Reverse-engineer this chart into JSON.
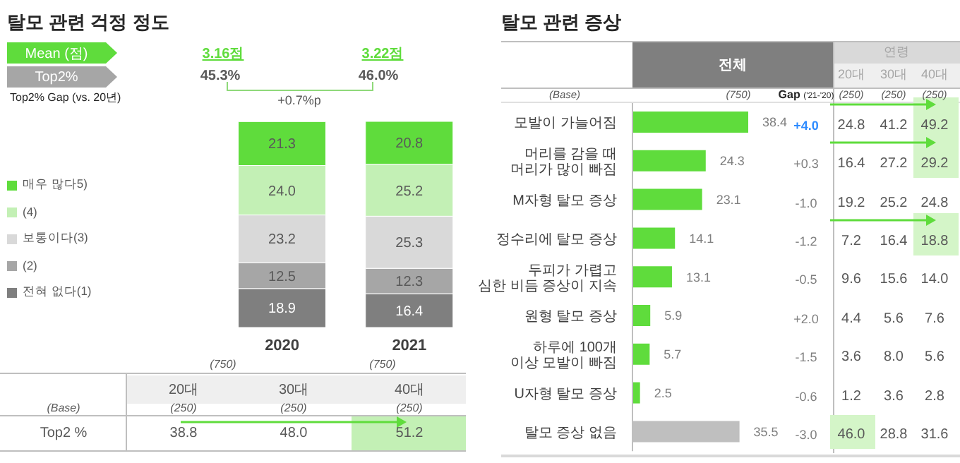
{
  "chart_data": [
    {
      "type": "bar",
      "title": "탈모 관련 걱정 정도",
      "stacked": true,
      "categories": [
        "2020",
        "2021"
      ],
      "legend": "left",
      "series": [
        {
          "name": "전혀 없다(1)",
          "color": "#7f7f7f",
          "values": [
            18.9,
            16.4
          ],
          "value_labels": [
            "18.9",
            "16.4"
          ]
        },
        {
          "name": "(2)",
          "color": "#a6a6a6",
          "values": [
            12.5,
            12.3
          ],
          "value_labels": [
            "12.5",
            "12.3"
          ]
        },
        {
          "name": "보통이다(3)",
          "color": "#d9d9d9",
          "values": [
            23.2,
            25.3
          ],
          "value_labels": [
            "23.2",
            "25.3"
          ]
        },
        {
          "name": "(4)",
          "color": "#c3f0b5",
          "values": [
            24.0,
            25.2
          ],
          "value_labels": [
            "24.0",
            "25.2"
          ]
        },
        {
          "name": "매우 많다5)",
          "color": "#5fdc3c",
          "values": [
            21.3,
            20.8
          ],
          "value_labels": [
            "21.3",
            "20.8"
          ]
        }
      ],
      "annotations": [
        "Mean (점)",
        "Top2%",
        "Top2% Gap (vs. 20년)",
        "3.16점",
        "3.22점",
        "45.3%",
        "46.0%",
        "+0.7%p",
        "(750)",
        "(750)"
      ]
    },
    {
      "type": "other",
      "categories": [
        "20대",
        "30대",
        "40대"
      ],
      "values": [
        38.8,
        48.0,
        51.2
      ],
      "value_labels": [
        "38.8",
        "48.0",
        "51.2"
      ],
      "ylabel": "Top2 %",
      "annotations": [
        "(Base)",
        "(250)",
        "(250)",
        "(250)"
      ]
    },
    {
      "type": "bar",
      "title": "탈모 관련 증상",
      "orientation": "horizontal",
      "data_labels": true,
      "categories": [
        "모발이 가늘어짐",
        "머리를 감을 때 머리가 많이 빠짐",
        "M자형 탈모 증상",
        "정수리에 탈모 증상",
        "두피가 가렵고 심한 비듬 증상이 지속",
        "원형 탈모 증상",
        "하루에 100개 이상 모발이 빠짐",
        "U자형 탈모 증상",
        "탈모 증상 없음"
      ],
      "values": [
        38.4,
        24.3,
        23.1,
        14.1,
        13.1,
        5.9,
        5.7,
        2.5,
        35.5
      ],
      "colors": [
        "#5fdc3c",
        "#5fdc3c",
        "#5fdc3c",
        "#5fdc3c",
        "#5fdc3c",
        "#5fdc3c",
        "#5fdc3c",
        "#5fdc3c",
        "#bfbfbf"
      ],
      "annotations": [
        "전체",
        "(Base)",
        "(750)"
      ]
    },
    {
      "type": "heatmap",
      "categories": [
        "Gap ('21-'20)",
        "20대",
        "30대",
        "40대"
      ],
      "y_categories": [
        null,
        null,
        null,
        null,
        null,
        null,
        null,
        null,
        null
      ],
      "cells": [
        [
          4.0,
          24.8,
          41.2,
          49.2
        ],
        [
          0.3,
          16.4,
          27.2,
          29.2
        ],
        [
          -1.0,
          19.2,
          25.2,
          24.8
        ],
        [
          -1.2,
          7.2,
          16.4,
          18.8
        ],
        [
          -0.5,
          9.6,
          15.6,
          14.0
        ],
        [
          2.0,
          4.4,
          5.6,
          7.6
        ],
        [
          -1.5,
          3.6,
          8.0,
          5.6
        ],
        [
          -0.6,
          1.2,
          3.6,
          2.8
        ],
        [
          -3.0,
          46.0,
          28.8,
          31.6
        ]
      ],
      "cell_labels": [
        [
          "+4.0",
          "24.8",
          "41.2",
          "49.2"
        ],
        [
          "+0.3",
          "16.4",
          "27.2",
          "29.2"
        ],
        [
          "-1.0",
          "19.2",
          "25.2",
          "24.8"
        ],
        [
          "-1.2",
          "7.2",
          "16.4",
          "18.8"
        ],
        [
          "-0.5",
          "9.6",
          "15.6",
          "14.0"
        ],
        [
          "+2.0",
          "4.4",
          "5.6",
          "7.6"
        ],
        [
          "-1.5",
          "3.6",
          "8.0",
          "5.6"
        ],
        [
          "-0.6",
          "1.2",
          "3.6",
          "2.8"
        ],
        [
          "-3.0",
          "46.0",
          "28.8",
          "31.6"
        ]
      ],
      "annotations": [
        "연령",
        "(250)",
        "(250)",
        "(250)"
      ]
    }
  ]
}
